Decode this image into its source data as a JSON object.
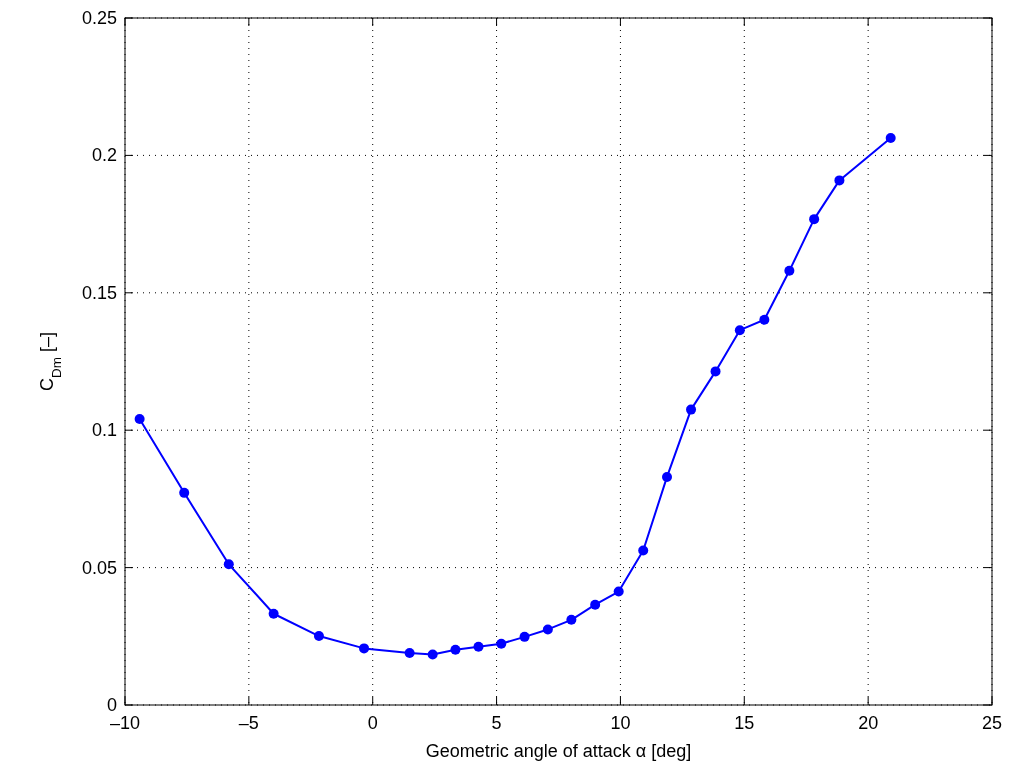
{
  "chart_data": {
    "type": "line",
    "xlabel": "Geometric angle of attack α  [deg]",
    "ylabel": "C$_{Dm}$ [–]",
    "xlim": [
      -10,
      25
    ],
    "xticks": [
      {
        "value": -10,
        "label": "–10"
      },
      {
        "value": -5,
        "label": "–5"
      },
      0,
      5,
      10,
      15,
      20,
      25
    ],
    "ylim": [
      0,
      0.25
    ],
    "yticks": [
      0,
      0.05,
      0.1,
      0.15,
      0.2,
      0.25
    ],
    "grid": true,
    "marker": "circle",
    "line_style": "solid",
    "series": [
      {
        "color": "#0000ff",
        "x": [
          -9.41,
          -7.61,
          -5.81,
          -4.0,
          -2.17,
          -0.35,
          1.49,
          2.42,
          3.34,
          4.27,
          5.19,
          6.13,
          7.07,
          8.02,
          8.98,
          9.93,
          10.92,
          11.88,
          12.85,
          13.84,
          14.82,
          15.81,
          16.82,
          17.82,
          18.84,
          20.91
        ],
        "values": [
          0.1041,
          0.0772,
          0.0512,
          0.0332,
          0.0251,
          0.0206,
          0.0189,
          0.0184,
          0.0201,
          0.0212,
          0.0223,
          0.0248,
          0.0275,
          0.031,
          0.0365,
          0.0413,
          0.0562,
          0.083,
          0.1075,
          0.1214,
          0.1364,
          0.1402,
          0.158,
          0.1768,
          0.1909,
          0.2063
        ]
      }
    ]
  }
}
